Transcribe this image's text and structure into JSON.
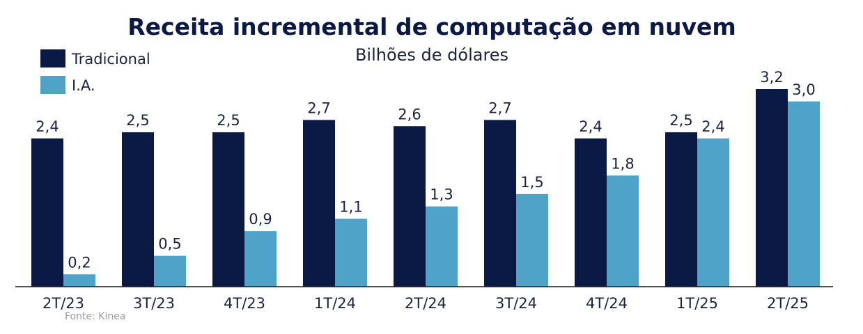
{
  "chart_data": {
    "type": "bar",
    "title": "Receita incremental de computação em nuvem",
    "subtitle": "Bilhões de dólares",
    "categories": [
      "2T/23",
      "3T/23",
      "4T/23",
      "1T/24",
      "2T/24",
      "3T/24",
      "4T/24",
      "1T/25",
      "2T/25"
    ],
    "series": [
      {
        "name": "Tradicional",
        "color": "#0a1a45",
        "values": [
          2.4,
          2.5,
          2.5,
          2.7,
          2.6,
          2.7,
          2.4,
          2.5,
          3.2
        ],
        "labels": [
          "2,4",
          "2,5",
          "2,5",
          "2,7",
          "2,6",
          "2,7",
          "2,4",
          "2,5",
          "3,2"
        ]
      },
      {
        "name": "I.A.",
        "color": "#4fa3c9",
        "values": [
          0.2,
          0.5,
          0.9,
          1.1,
          1.3,
          1.5,
          1.8,
          2.4,
          3.0
        ],
        "labels": [
          "0,2",
          "0,5",
          "0,9",
          "1,1",
          "1,3",
          "1,5",
          "1,8",
          "2,4",
          "3,0"
        ]
      }
    ],
    "ylim": [
      0,
      3.2
    ],
    "grid": false,
    "legend": "top-left",
    "source": "Fonte: Kinea"
  }
}
